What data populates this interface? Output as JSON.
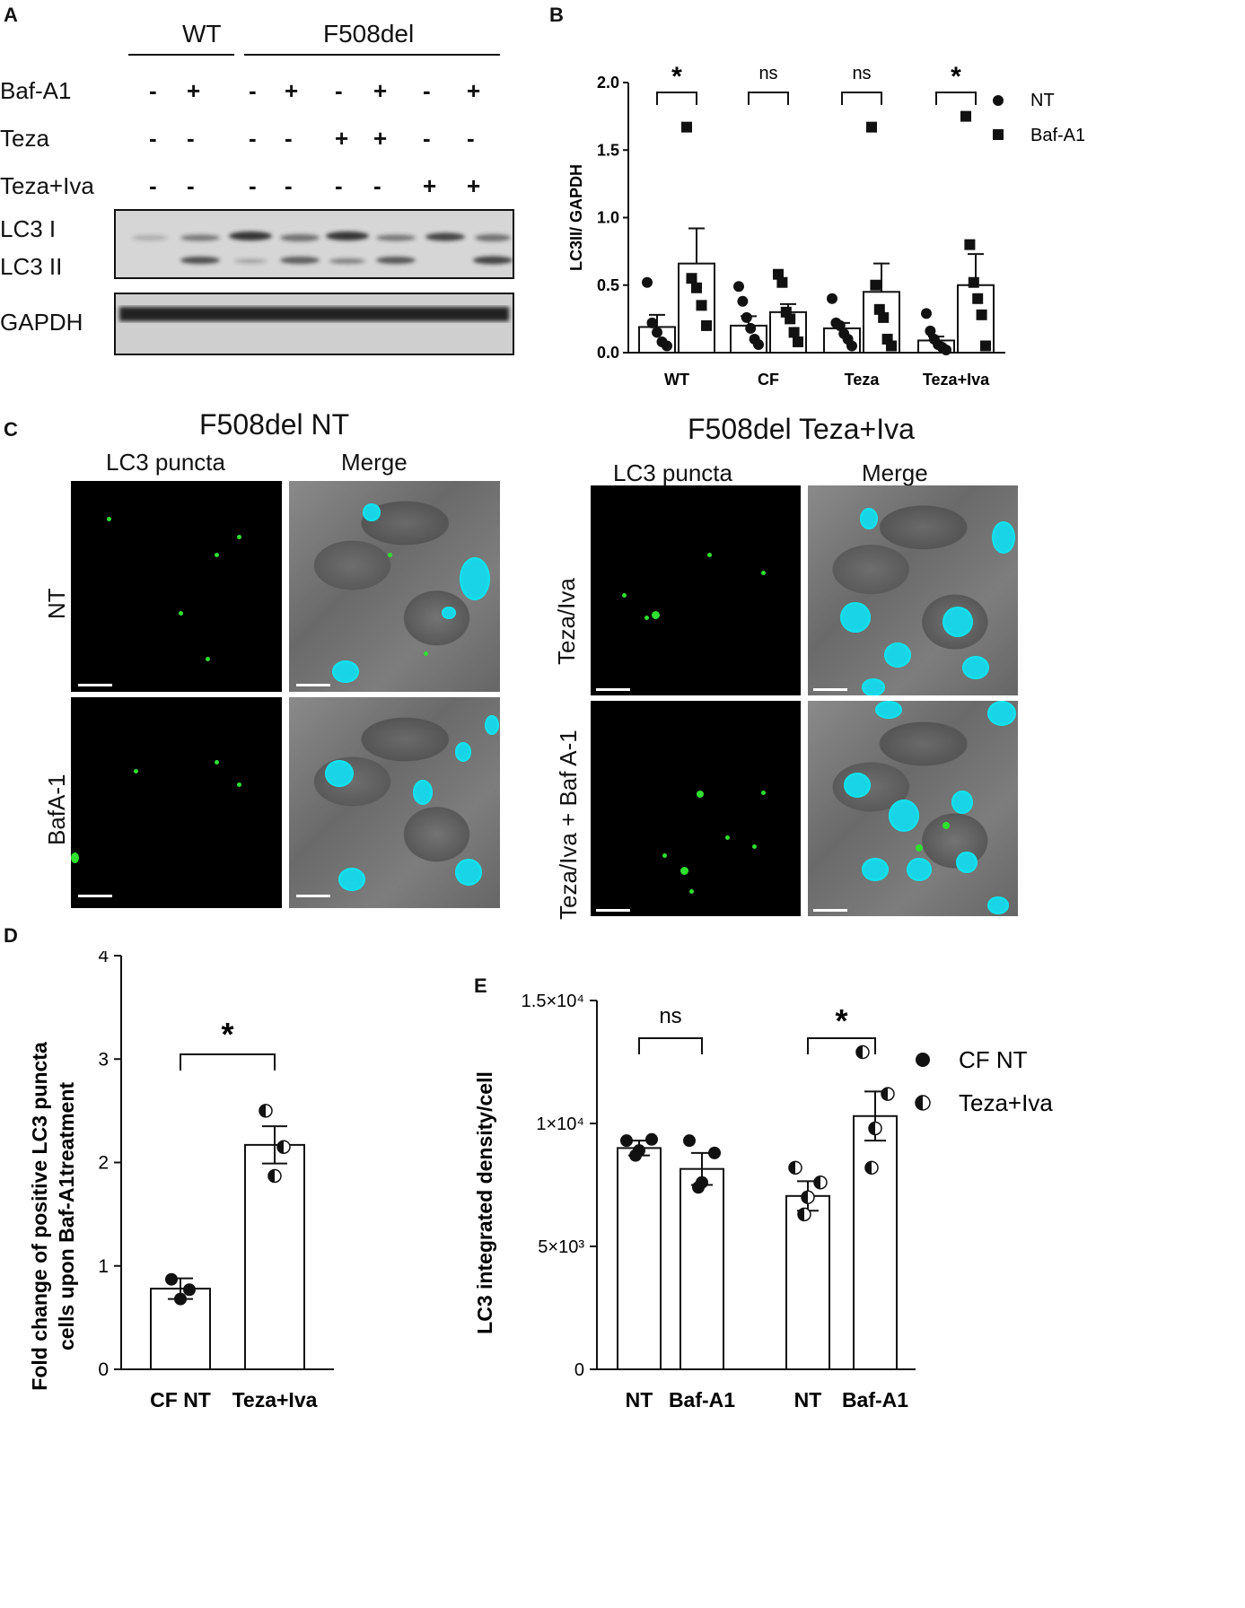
{
  "panel_labels": {
    "a": "A",
    "b": "B",
    "c": "C",
    "d": "D",
    "e": "E"
  },
  "panelA": {
    "groups": [
      "WT",
      "F508del"
    ],
    "rows": [
      {
        "label": "Baf-A1",
        "signs": [
          "-",
          "+",
          "-",
          "+",
          "-",
          "+",
          "-",
          "+"
        ]
      },
      {
        "label": "Teza",
        "signs": [
          "-",
          "-",
          "-",
          "-",
          "+",
          "+",
          "-",
          "-"
        ]
      },
      {
        "label": "Teza+Iva",
        "signs": [
          "-",
          "-",
          "-",
          "-",
          "-",
          "-",
          "+",
          "+"
        ]
      }
    ],
    "blot_labels": {
      "lc3i": "LC3 I",
      "lc3ii": "LC3 II",
      "gapdh": "GAPDH"
    }
  },
  "panelC": {
    "left_title": "F508del NT",
    "right_title": "F508del Teza+Iva",
    "col_labels": {
      "puncta": "LC3 puncta",
      "merge": "Merge"
    },
    "left_rows": [
      "NT",
      "BafA-1"
    ],
    "right_rows": [
      "Teza/Iva",
      "Teza/Iva + Baf A-1"
    ]
  },
  "chart_data": [
    {
      "panel": "B",
      "type": "bar",
      "categories": [
        "WT",
        "CF",
        "Teza",
        "Teza+Iva"
      ],
      "ylabel": "LC3II/ GAPDH",
      "ylim": [
        0,
        2.0
      ],
      "yticks": [
        "0.0",
        "0.5",
        "1.0",
        "1.5",
        "2.0"
      ],
      "series": [
        {
          "name": "NT",
          "marker": "circle",
          "means": [
            0.19,
            0.2,
            0.18,
            0.09
          ],
          "errors": [
            0.09,
            0.07,
            0.04,
            0.03
          ],
          "points": [
            [
              0.52,
              0.22,
              0.15,
              0.08,
              0.05
            ],
            [
              0.49,
              0.38,
              0.26,
              0.18,
              0.1,
              0.06
            ],
            [
              0.4,
              0.22,
              0.2,
              0.14,
              0.1,
              0.05
            ],
            [
              0.29,
              0.16,
              0.1,
              0.06,
              0.04,
              0.02
            ]
          ]
        },
        {
          "name": "Baf-A1",
          "marker": "square",
          "means": [
            0.66,
            0.3,
            0.45,
            0.5
          ],
          "errors": [
            0.26,
            0.06,
            0.21,
            0.23
          ],
          "points": [
            [
              1.67,
              0.55,
              0.48,
              0.35,
              0.2
            ],
            [
              0.58,
              0.52,
              0.3,
              0.25,
              0.15,
              0.08
            ],
            [
              1.67,
              0.5,
              0.32,
              0.26,
              0.1,
              0.05
            ],
            [
              1.75,
              0.8,
              0.52,
              0.4,
              0.28,
              0.05
            ]
          ]
        }
      ],
      "significance": [
        "*",
        "ns",
        "ns",
        "*"
      ]
    },
    {
      "panel": "D",
      "type": "bar",
      "categories": [
        "CF NT",
        "Teza+Iva"
      ],
      "values": [
        0.78,
        2.17
      ],
      "errors": [
        0.1,
        0.18
      ],
      "points": [
        [
          0.87,
          0.77,
          0.68
        ],
        [
          2.5,
          2.15,
          1.87
        ]
      ],
      "ylabel": "Fold change of positive LC3 puncta cells upon Baf-A1treatment",
      "ylim": [
        0,
        4
      ],
      "yticks": [
        "0",
        "1",
        "2",
        "3",
        "4"
      ],
      "significance": [
        "*"
      ]
    },
    {
      "panel": "E",
      "type": "bar",
      "categories": [
        "NT",
        "Baf-A1",
        "NT",
        "Baf-A1"
      ],
      "values": [
        9000,
        8150,
        7050,
        10300
      ],
      "errors": [
        300,
        650,
        600,
        1000
      ],
      "points": [
        [
          9300,
          9350,
          8900,
          8700
        ],
        [
          9300,
          8800,
          7600,
          7400
        ],
        [
          8200,
          7600,
          7000,
          6300
        ],
        [
          12900,
          11200,
          9800,
          8200
        ]
      ],
      "ylabel": "LC3 integrated density/cell",
      "ylim": [
        0,
        15000
      ],
      "yticks": [
        "0",
        "5×10³",
        "1×10⁴",
        "1.5×10⁴"
      ],
      "legend": [
        "CF NT",
        "Teza+Iva"
      ],
      "significance": [
        "ns",
        "*"
      ]
    }
  ]
}
